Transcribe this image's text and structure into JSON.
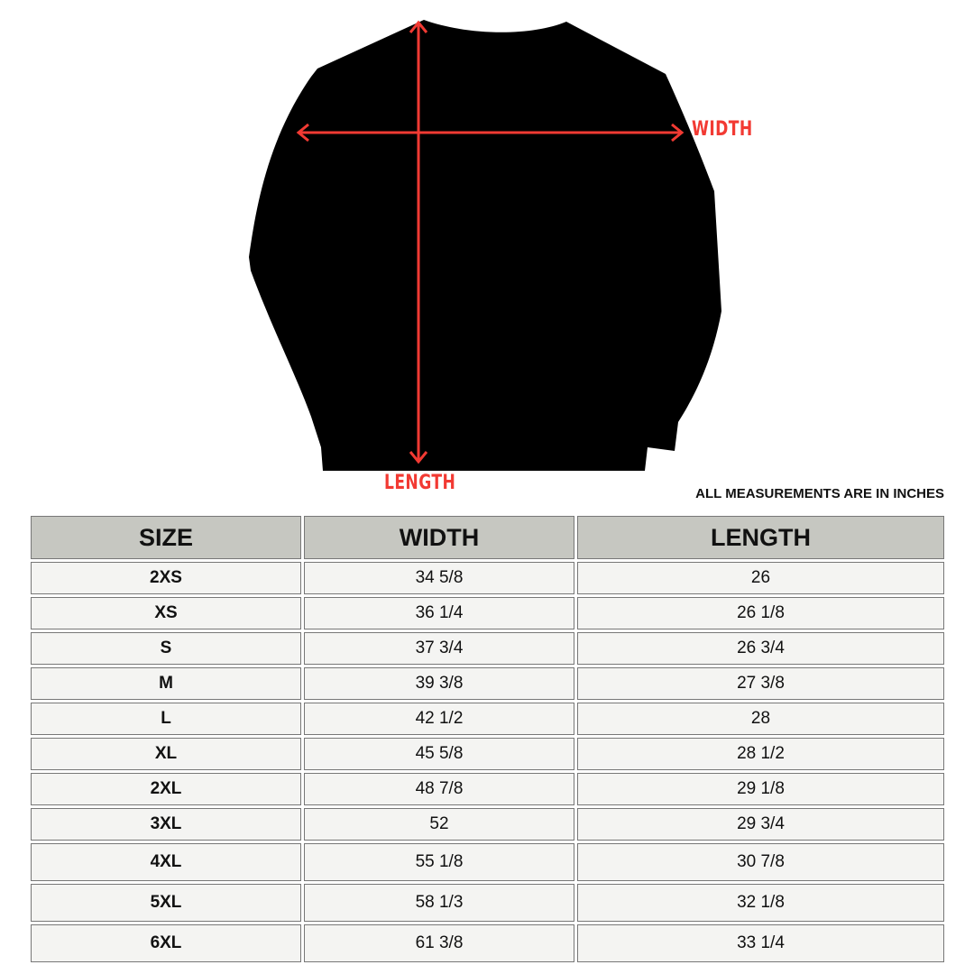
{
  "diagram": {
    "width_label": "WIDTH",
    "length_label": "LENGTH",
    "arrow_color": "#f23a33",
    "garment_color": "#000000"
  },
  "note": "ALL MEASUREMENTS ARE IN INCHES",
  "table": {
    "headers": [
      "SIZE",
      "WIDTH",
      "LENGTH"
    ],
    "rows": [
      [
        "2XS",
        "34 5/8",
        "26"
      ],
      [
        "XS",
        "36 1/4",
        "26 1/8"
      ],
      [
        "S",
        "37 3/4",
        "26 3/4"
      ],
      [
        "M",
        "39 3/8",
        "27 3/8"
      ],
      [
        "L",
        "42 1/2",
        "28"
      ],
      [
        "XL",
        "45 5/8",
        "28 1/2"
      ],
      [
        "2XL",
        "48 7/8",
        "29 1/8"
      ],
      [
        "3XL",
        "52",
        "29 3/4"
      ],
      [
        "4XL",
        "55 1/8",
        "30 7/8"
      ],
      [
        "5XL",
        "58 1/3",
        "32 1/8"
      ],
      [
        "6XL",
        "61 3/8",
        "33 1/4"
      ]
    ]
  }
}
